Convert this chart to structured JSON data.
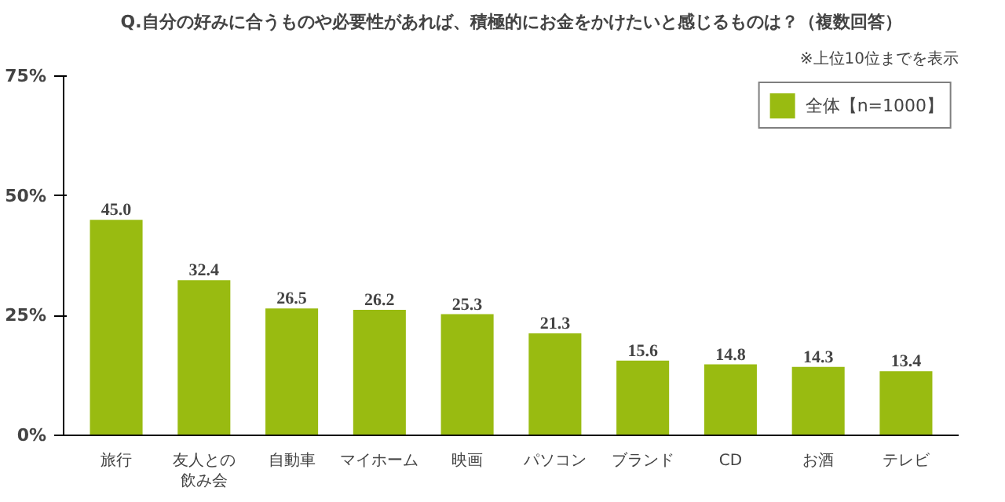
{
  "chart_data": {
    "type": "bar",
    "title": "Q.自分の好みに合うものや必要性があれば、積極的にお金をかけたいと感じるものは？（複数回答）",
    "annotations": [
      "※上位10位までを表示"
    ],
    "categories": [
      "旅行",
      "友人との飲み会",
      "自動車",
      "マイホーム",
      "映画",
      "パソコン",
      "ブランド",
      "CD",
      "お酒",
      "テレビ"
    ],
    "series": [
      {
        "name": "全体【n=1000】",
        "color": "#99bb11",
        "values": [
          45.0,
          32.4,
          26.5,
          26.2,
          25.3,
          21.3,
          15.6,
          14.8,
          14.3,
          13.4
        ],
        "value_labels": [
          "45.0",
          "32.4",
          "26.5",
          "26.2",
          "25.3",
          "21.3",
          "15.6",
          "14.8",
          "14.3",
          "13.4"
        ]
      }
    ],
    "ylim": [
      0,
      75
    ],
    "yticks": [
      {
        "value": 0,
        "label": "0%"
      },
      {
        "value": 25,
        "label": "25%"
      },
      {
        "value": 50,
        "label": "50%"
      },
      {
        "value": 75,
        "label": "75%"
      }
    ],
    "legend": "top right",
    "grid": false
  }
}
